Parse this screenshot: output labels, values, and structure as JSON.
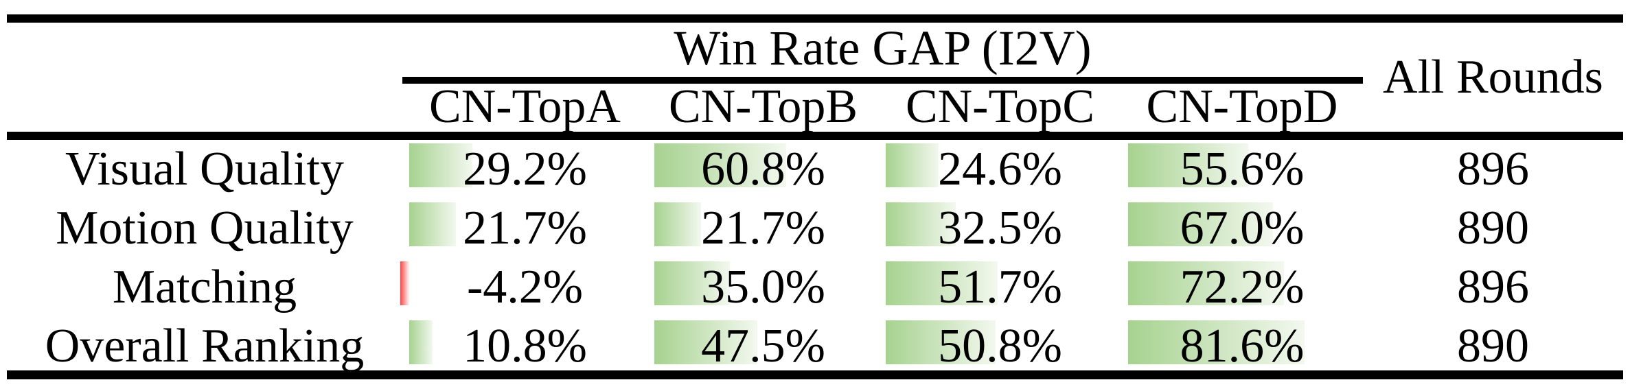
{
  "table": {
    "group_header": "Win Rate GAP (I2V)",
    "all_rounds_header": "All Rounds",
    "columns": [
      "CN-TopA",
      "CN-TopB",
      "CN-TopC",
      "CN-TopD"
    ],
    "rows": [
      {
        "label": "Visual Quality",
        "values": [
          "29.2%",
          "60.8%",
          "24.6%",
          "55.6%"
        ],
        "bar_values": [
          29.2,
          60.8,
          24.6,
          55.6
        ],
        "all_rounds": "896"
      },
      {
        "label": "Motion Quality",
        "values": [
          "21.7%",
          "21.7%",
          "32.5%",
          "67.0%"
        ],
        "bar_values": [
          21.7,
          21.7,
          32.5,
          67.0
        ],
        "all_rounds": "890"
      },
      {
        "label": "Matching",
        "values": [
          "-4.2%",
          "35.0%",
          "51.7%",
          "72.2%"
        ],
        "bar_values": [
          -4.2,
          35.0,
          51.7,
          72.2
        ],
        "all_rounds": "896"
      },
      {
        "label": "Overall Ranking",
        "values": [
          "10.8%",
          "47.5%",
          "50.8%",
          "81.6%"
        ],
        "bar_values": [
          10.8,
          47.5,
          50.8,
          81.6
        ],
        "all_rounds": "890"
      }
    ],
    "colors": {
      "positive_bar": "#a6d28f",
      "positive_bar_fade": "#f3f8ef",
      "negative_bar": "#ff4444",
      "negative_bar_fade": "#fff7f7",
      "rule": "#000000"
    }
  },
  "chart_data": {
    "type": "table",
    "title": "Win Rate GAP (I2V)",
    "categories": [
      "Visual Quality",
      "Motion Quality",
      "Matching",
      "Overall Ranking"
    ],
    "series": [
      {
        "name": "CN-TopA",
        "values": [
          29.2,
          21.7,
          -4.2,
          10.8
        ]
      },
      {
        "name": "CN-TopB",
        "values": [
          60.8,
          21.7,
          35.0,
          47.5
        ]
      },
      {
        "name": "CN-TopC",
        "values": [
          24.6,
          32.5,
          51.7,
          50.8
        ]
      },
      {
        "name": "CN-TopD",
        "values": [
          55.6,
          67.0,
          72.2,
          81.6
        ]
      }
    ],
    "all_rounds": [
      896,
      890,
      896,
      890
    ],
    "unit": "%",
    "notes": "In-cell data bars; green gradient for positive values, red for negative"
  }
}
